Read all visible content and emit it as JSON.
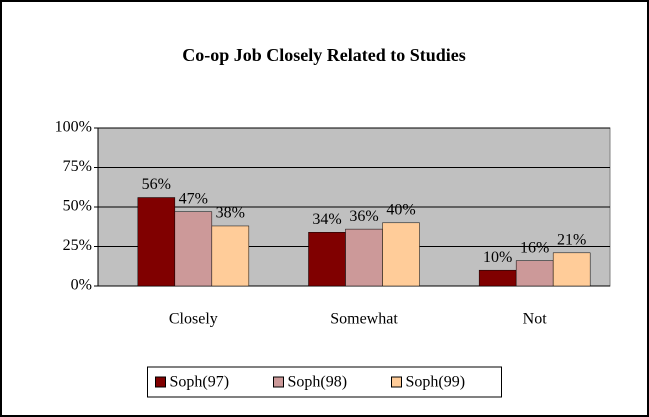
{
  "chart_data": {
    "type": "bar",
    "title": "Co-op Job Closely Related to Studies",
    "categories": [
      "Closely",
      "Somewhat",
      "Not"
    ],
    "series": [
      {
        "name": "Soph(97)",
        "color": "#800000",
        "values": [
          56,
          34,
          10
        ],
        "value_labels": [
          "56%",
          "34%",
          "10%"
        ]
      },
      {
        "name": "Soph(98)",
        "color": "#cc9999",
        "values": [
          47,
          36,
          16
        ],
        "value_labels": [
          "47%",
          "36%",
          "16%"
        ]
      },
      {
        "name": "Soph(99)",
        "color": "#ffcc99",
        "values": [
          38,
          40,
          21
        ],
        "value_labels": [
          "38%",
          "40%",
          "21%"
        ]
      }
    ],
    "ylim": [
      0,
      100
    ],
    "yticks": [
      {
        "value": 0,
        "label": "0%"
      },
      {
        "value": 25,
        "label": "25%"
      },
      {
        "value": 50,
        "label": "50%"
      },
      {
        "value": 75,
        "label": "75%"
      },
      {
        "value": 100,
        "label": "100%"
      }
    ],
    "grid": true,
    "legend": "bottom"
  }
}
